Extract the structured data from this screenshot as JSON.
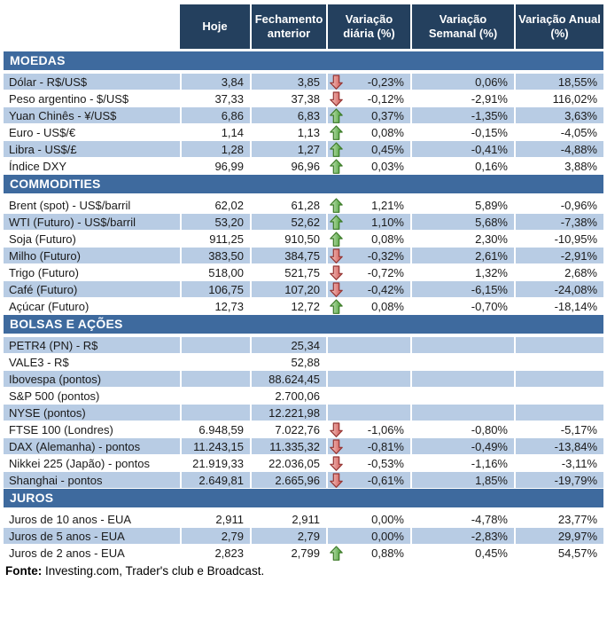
{
  "header": {
    "columns": [
      "Hoje",
      "Fechamento anterior",
      "Variação diária (%)",
      "Variação Semanal (%)",
      "Variação Anual (%)"
    ]
  },
  "sections": [
    {
      "title": "MOEDAS",
      "first_row_shaded": true,
      "rows": [
        {
          "label": "Dólar - R$/US$",
          "hoje": "3,84",
          "fechamento": "3,85",
          "arrow": "down",
          "var_diaria": "-0,23%",
          "var_semanal": "0,06%",
          "var_anual": "18,55%"
        },
        {
          "label": "Peso argentino - $/US$",
          "hoje": "37,33",
          "fechamento": "37,38",
          "arrow": "down",
          "var_diaria": "-0,12%",
          "var_semanal": "-2,91%",
          "var_anual": "116,02%"
        },
        {
          "label": "Yuan Chinês - ¥/US$",
          "hoje": "6,86",
          "fechamento": "6,83",
          "arrow": "up",
          "var_diaria": "0,37%",
          "var_semanal": "-1,35%",
          "var_anual": "3,63%"
        },
        {
          "label": "Euro - US$/€",
          "hoje": "1,14",
          "fechamento": "1,13",
          "arrow": "up",
          "var_diaria": "0,08%",
          "var_semanal": "-0,15%",
          "var_anual": "-4,05%"
        },
        {
          "label": "Libra - US$/£",
          "hoje": "1,28",
          "fechamento": "1,27",
          "arrow": "up",
          "var_diaria": "0,45%",
          "var_semanal": "-0,41%",
          "var_anual": "-4,88%"
        },
        {
          "label": "Índice DXY",
          "hoje": "96,99",
          "fechamento": "96,96",
          "arrow": "up",
          "var_diaria": "0,03%",
          "var_semanal": "0,16%",
          "var_anual": "3,88%"
        }
      ]
    },
    {
      "title": "COMMODITIES",
      "first_row_shaded": false,
      "rows": [
        {
          "label": "Brent (spot) - US$/barril",
          "hoje": "62,02",
          "fechamento": "61,28",
          "arrow": "up",
          "var_diaria": "1,21%",
          "var_semanal": "5,89%",
          "var_anual": "-0,96%"
        },
        {
          "label": "WTI (Futuro) - US$/barril",
          "hoje": "53,20",
          "fechamento": "52,62",
          "arrow": "up",
          "var_diaria": "1,10%",
          "var_semanal": "5,68%",
          "var_anual": "-7,38%"
        },
        {
          "label": "Soja (Futuro)",
          "hoje": "911,25",
          "fechamento": "910,50",
          "arrow": "up",
          "var_diaria": "0,08%",
          "var_semanal": "2,30%",
          "var_anual": "-10,95%"
        },
        {
          "label": "Milho (Futuro)",
          "hoje": "383,50",
          "fechamento": "384,75",
          "arrow": "down",
          "var_diaria": "-0,32%",
          "var_semanal": "2,61%",
          "var_anual": "-2,91%"
        },
        {
          "label": "Trigo (Futuro)",
          "hoje": "518,00",
          "fechamento": "521,75",
          "arrow": "down",
          "var_diaria": "-0,72%",
          "var_semanal": "1,32%",
          "var_anual": "2,68%"
        },
        {
          "label": "Café (Futuro)",
          "hoje": "106,75",
          "fechamento": "107,20",
          "arrow": "down",
          "var_diaria": "-0,42%",
          "var_semanal": "-6,15%",
          "var_anual": "-24,08%"
        },
        {
          "label": "Açúcar (Futuro)",
          "hoje": "12,73",
          "fechamento": "12,72",
          "arrow": "up",
          "var_diaria": "0,08%",
          "var_semanal": "-0,70%",
          "var_anual": "-18,14%"
        }
      ]
    },
    {
      "title": "BOLSAS E AÇÕES",
      "first_row_shaded": true,
      "rows": [
        {
          "label": "PETR4 (PN) - R$",
          "hoje": "",
          "fechamento": "25,34",
          "arrow": "",
          "var_diaria": "",
          "var_semanal": "",
          "var_anual": ""
        },
        {
          "label": "VALE3 - R$",
          "hoje": "",
          "fechamento": "52,88",
          "arrow": "",
          "var_diaria": "",
          "var_semanal": "",
          "var_anual": ""
        },
        {
          "label": "Ibovespa (pontos)",
          "hoje": "",
          "fechamento": "88.624,45",
          "arrow": "",
          "var_diaria": "",
          "var_semanal": "",
          "var_anual": ""
        },
        {
          "label": "S&P 500 (pontos)",
          "hoje": "",
          "fechamento": "2.700,06",
          "arrow": "",
          "var_diaria": "",
          "var_semanal": "",
          "var_anual": ""
        },
        {
          "label": "NYSE (pontos)",
          "hoje": "",
          "fechamento": "12.221,98",
          "arrow": "",
          "var_diaria": "",
          "var_semanal": "",
          "var_anual": ""
        },
        {
          "label": "FTSE 100 (Londres)",
          "hoje": "6.948,59",
          "fechamento": "7.022,76",
          "arrow": "down",
          "var_diaria": "-1,06%",
          "var_semanal": "-0,80%",
          "var_anual": "-5,17%"
        },
        {
          "label": "DAX (Alemanha) - pontos",
          "hoje": "11.243,15",
          "fechamento": "11.335,32",
          "arrow": "down",
          "var_diaria": "-0,81%",
          "var_semanal": "-0,49%",
          "var_anual": "-13,84%"
        },
        {
          "label": "Nikkei 225 (Japão) - pontos",
          "hoje": "21.919,33",
          "fechamento": "22.036,05",
          "arrow": "down",
          "var_diaria": "-0,53%",
          "var_semanal": "-1,16%",
          "var_anual": "-3,11%"
        },
        {
          "label": "Shanghai - pontos",
          "hoje": "2.649,81",
          "fechamento": "2.665,96",
          "arrow": "down",
          "var_diaria": "-0,61%",
          "var_semanal": "1,85%",
          "var_anual": "-19,79%"
        }
      ]
    },
    {
      "title": "JUROS",
      "first_row_shaded": false,
      "rows": [
        {
          "label": "Juros de 10 anos - EUA",
          "hoje": "2,911",
          "fechamento": "2,911",
          "arrow": "",
          "var_diaria": "0,00%",
          "var_semanal": "-4,78%",
          "var_anual": "23,77%"
        },
        {
          "label": "Juros de 5 anos - EUA",
          "hoje": "2,79",
          "fechamento": "2,79",
          "arrow": "",
          "var_diaria": "0,00%",
          "var_semanal": "-2,83%",
          "var_anual": "29,97%"
        },
        {
          "label": "Juros de 2 anos - EUA",
          "hoje": "2,823",
          "fechamento": "2,799",
          "arrow": "up",
          "var_diaria": "0,88%",
          "var_semanal": "0,45%",
          "var_anual": "54,57%"
        }
      ]
    }
  ],
  "footer": {
    "bold": "Fonte:",
    "text": " Investing.com, Trader's club e Broadcast."
  },
  "colors": {
    "header_navy": "#24405e",
    "section_blue": "#3e6a9e",
    "row_shaded": "#b8cce4",
    "arrow_up_fill_light": "#cde8c2",
    "arrow_up_fill_dark": "#3f9a2b",
    "arrow_up_stroke": "#3c7a28",
    "arrow_down_fill_light": "#f4cbc8",
    "arrow_down_fill_dark": "#cf4f4b",
    "arrow_down_stroke": "#943634"
  }
}
